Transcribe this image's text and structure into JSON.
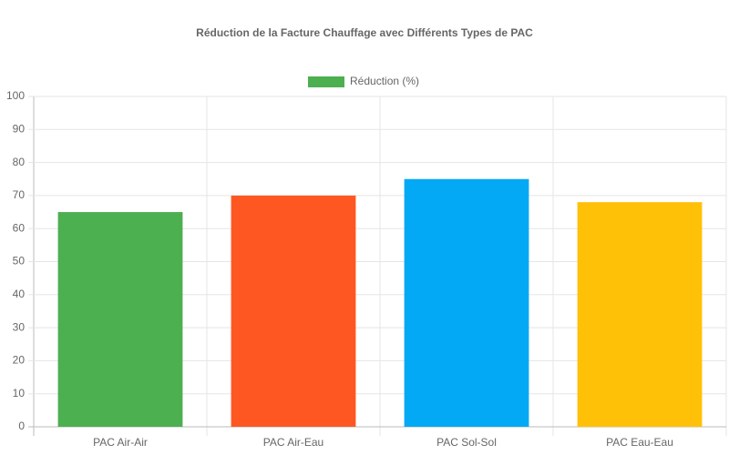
{
  "chart_data": {
    "type": "bar",
    "title": "Réduction de la Facture Chauffage avec Différents Types de PAC",
    "categories": [
      "PAC Air-Air",
      "PAC Air-Eau",
      "PAC Sol-Sol",
      "PAC Eau-Eau"
    ],
    "series": [
      {
        "name": "Réduction (%)",
        "colors": [
          "#4caf50",
          "#ff5722",
          "#03a9f4",
          "#ffc107"
        ],
        "values": [
          65,
          70,
          75,
          68
        ]
      }
    ],
    "ylim": [
      0,
      100
    ],
    "yticks": [
      0,
      10,
      20,
      30,
      40,
      50,
      60,
      70,
      80,
      90,
      100
    ],
    "grid": true,
    "legend": "top"
  }
}
